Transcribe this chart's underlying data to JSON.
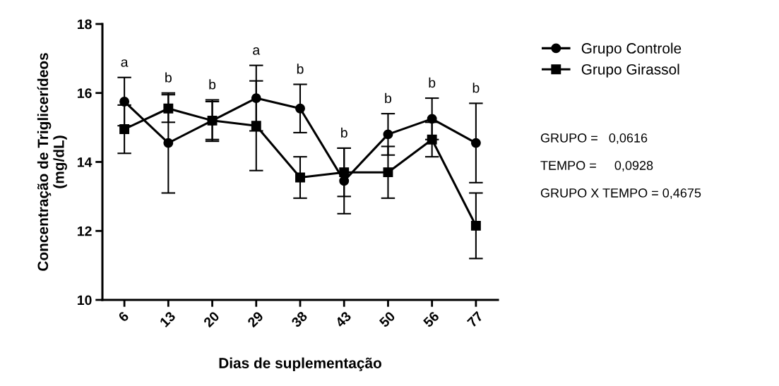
{
  "chart_data": {
    "type": "line",
    "xlabel": "Dias de suplementação",
    "ylabel": "Concentração de Triglicerídeos\n(mg/dL)",
    "categories": [
      "6",
      "13",
      "20",
      "29",
      "38",
      "43",
      "50",
      "56",
      "77"
    ],
    "series": [
      {
        "name": "Grupo Controle",
        "color": "#000000",
        "marker": "circle",
        "values": [
          15.75,
          14.55,
          15.2,
          15.85,
          15.55,
          13.45,
          14.8,
          15.25,
          14.55
        ],
        "errors": [
          0.7,
          1.45,
          0.6,
          0.95,
          0.7,
          0.95,
          0.6,
          0.6,
          1.15
        ]
      },
      {
        "name": "Grupo Girassol",
        "color": "#000000",
        "marker": "square",
        "values": [
          14.95,
          15.55,
          15.2,
          15.05,
          13.55,
          13.7,
          13.7,
          14.65,
          12.15
        ],
        "errors": [
          0.7,
          0.4,
          0.55,
          1.3,
          0.6,
          0.7,
          0.75,
          0.5,
          0.95
        ]
      }
    ],
    "ylim": [
      10,
      18
    ],
    "yticks": [
      10,
      12,
      14,
      16,
      18
    ],
    "grid": false,
    "legend": "right",
    "line_style": "solid",
    "annotations": [
      "a",
      "b",
      "b",
      "a",
      "b",
      "b",
      "b",
      "b",
      "b",
      "GRUPO =   0,0616",
      "TEMPO =     0,0928",
      "GRUPO X TEMPO = 0,4675"
    ]
  }
}
